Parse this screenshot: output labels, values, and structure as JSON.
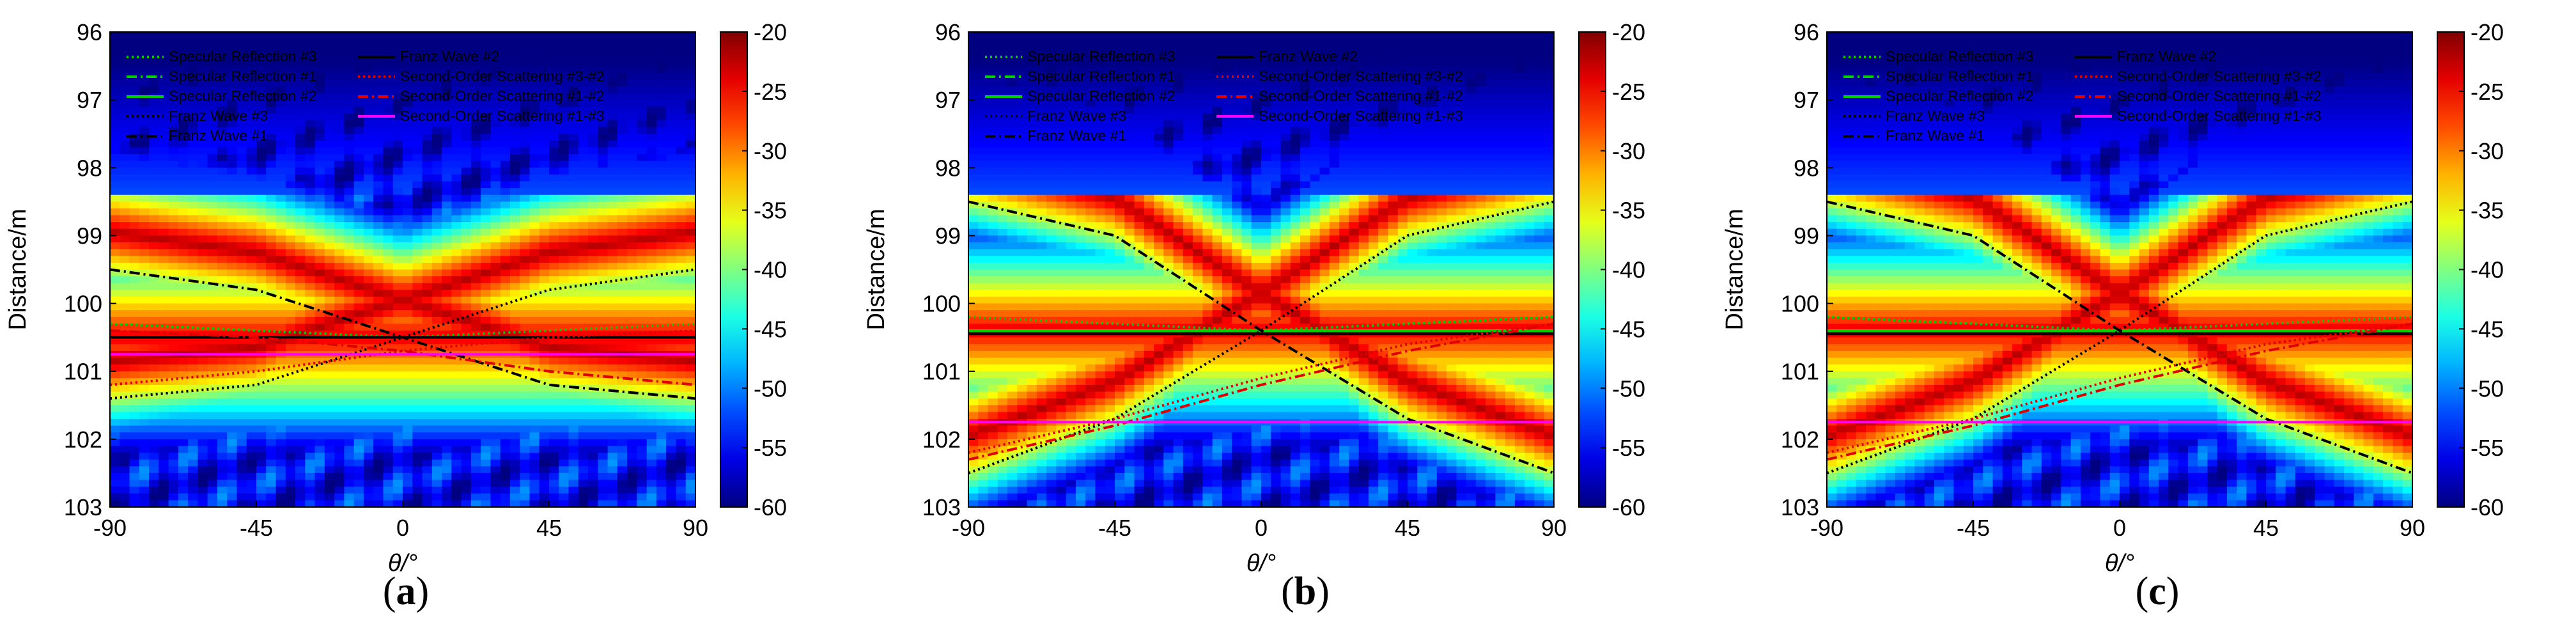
{
  "chart_data": [
    {
      "type": "heatmap",
      "panel_label": "a",
      "xlabel": "θ/°",
      "ylabel": "Distance/m",
      "xlim": [
        -90,
        90
      ],
      "ylim": [
        103,
        96
      ],
      "xticks": [
        "-90",
        "-45",
        "0",
        "45",
        "90"
      ],
      "yticks": [
        "96",
        "97",
        "98",
        "99",
        "100",
        "101",
        "102",
        "103"
      ],
      "colorbar": {
        "range": [
          -60,
          -20
        ],
        "ticks": [
          "-20",
          "-25",
          "-30",
          "-35",
          "-40",
          "-45",
          "-50",
          "-55",
          "-60"
        ],
        "colormap": "jet"
      },
      "legend": [
        "Specular Reflection #3",
        "Specular Reflection #1",
        "Specular Reflection #2",
        "Franz Wave #3",
        "Franz Wave #1",
        "Franz Wave #2",
        "Second-Order Scattering #3-#2",
        "Second-Order Scattering #1-#2",
        "Second-Order Scattering #1-#3"
      ],
      "legend_placement": "top-left",
      "series": [
        {
          "name": "Specular Reflection #3",
          "color": "#00d000",
          "dash": "dot",
          "x": [
            -90,
            0,
            90
          ],
          "y": [
            100.3,
            100.5,
            100.3
          ]
        },
        {
          "name": "Specular Reflection #1",
          "color": "#00d000",
          "dash": "dashdot",
          "x": [
            -90,
            90
          ],
          "y": [
            100.5,
            100.5
          ]
        },
        {
          "name": "Specular Reflection #2",
          "color": "#00d000",
          "dash": "solid",
          "x": [
            -90,
            90
          ],
          "y": [
            100.5,
            100.5
          ]
        },
        {
          "name": "Franz Wave #3",
          "color": "#000000",
          "dash": "dot",
          "x": [
            -90,
            -45,
            0,
            45,
            90
          ],
          "y": [
            101.4,
            101.2,
            100.5,
            99.8,
            99.5
          ]
        },
        {
          "name": "Franz Wave #1",
          "color": "#000000",
          "dash": "dashdot",
          "x": [
            -90,
            -45,
            0,
            45,
            90
          ],
          "y": [
            99.5,
            99.8,
            100.5,
            101.2,
            101.4
          ]
        },
        {
          "name": "Franz Wave #2",
          "color": "#000000",
          "dash": "solid",
          "x": [
            -90,
            90
          ],
          "y": [
            100.5,
            100.5
          ]
        },
        {
          "name": "Second-Order Scattering #3-#2",
          "color": "#e00000",
          "dash": "dot",
          "x": [
            -90,
            -45,
            0,
            45,
            90
          ],
          "y": [
            101.2,
            101.0,
            100.7,
            100.5,
            100.4
          ]
        },
        {
          "name": "Second-Order Scattering #1-#2",
          "color": "#e00000",
          "dash": "dashdot",
          "x": [
            -90,
            -45,
            0,
            45,
            90
          ],
          "y": [
            100.4,
            100.5,
            100.7,
            101.0,
            101.2
          ]
        },
        {
          "name": "Second-Order Scattering #1-#3",
          "color": "#ff00ff",
          "dash": "solid",
          "x": [
            -90,
            90
          ],
          "y": [
            100.75,
            100.75
          ]
        }
      ]
    },
    {
      "type": "heatmap",
      "panel_label": "b",
      "xlabel": "θ/°",
      "ylabel": "Distance/m",
      "xlim": [
        -90,
        90
      ],
      "ylim": [
        103,
        96
      ],
      "xticks": [
        "-90",
        "-45",
        "0",
        "45",
        "90"
      ],
      "yticks": [
        "96",
        "97",
        "98",
        "99",
        "100",
        "101",
        "102",
        "103"
      ],
      "colorbar": {
        "range": [
          -60,
          -20
        ],
        "ticks": [
          "-20",
          "-25",
          "-30",
          "-35",
          "-40",
          "-45",
          "-50",
          "-55",
          "-60"
        ],
        "colormap": "jet"
      },
      "legend": [
        "Specular Reflection #3",
        "Specular Reflection #1",
        "Specular Reflection #2",
        "Franz Wave #3",
        "Franz Wave #1",
        "Franz Wave #2",
        "Second-Order Scattering #3-#2",
        "Second-Order Scattering #1-#2",
        "Second-Order Scattering #1-#3"
      ],
      "legend_placement": "top-left",
      "series": [
        {
          "name": "Specular Reflection #3",
          "color": "#00d000",
          "dash": "dot",
          "x": [
            -90,
            0,
            90
          ],
          "y": [
            100.2,
            100.4,
            100.2
          ]
        },
        {
          "name": "Specular Reflection #1",
          "color": "#00d000",
          "dash": "dashdot",
          "x": [
            -90,
            90
          ],
          "y": [
            100.4,
            100.4
          ]
        },
        {
          "name": "Specular Reflection #2",
          "color": "#00d000",
          "dash": "solid",
          "x": [
            -90,
            90
          ],
          "y": [
            100.4,
            100.4
          ]
        },
        {
          "name": "Franz Wave #3",
          "color": "#000000",
          "dash": "dot",
          "x": [
            -90,
            -45,
            0,
            45,
            90
          ],
          "y": [
            102.5,
            101.7,
            100.4,
            99.0,
            98.5
          ]
        },
        {
          "name": "Franz Wave #1",
          "color": "#000000",
          "dash": "dashdot",
          "x": [
            -90,
            -45,
            0,
            45,
            90
          ],
          "y": [
            98.5,
            99.0,
            100.4,
            101.7,
            102.5
          ]
        },
        {
          "name": "Franz Wave #2",
          "color": "#000000",
          "dash": "solid",
          "x": [
            -90,
            90
          ],
          "y": [
            100.45,
            100.45
          ]
        },
        {
          "name": "Second-Order Scattering #3-#2",
          "color": "#e00000",
          "dash": "dot",
          "x": [
            -90,
            -45,
            0,
            45,
            90
          ],
          "y": [
            102.2,
            101.7,
            101.1,
            100.6,
            100.3
          ]
        },
        {
          "name": "Second-Order Scattering #1-#2",
          "color": "#e00000",
          "dash": "dashdot",
          "x": [
            -90,
            -45,
            0,
            45,
            90
          ],
          "y": [
            102.3,
            101.8,
            101.2,
            100.7,
            100.3
          ]
        },
        {
          "name": "Second-Order Scattering #1-#3",
          "color": "#ff00ff",
          "dash": "solid",
          "x": [
            -90,
            90
          ],
          "y": [
            101.75,
            101.75
          ]
        }
      ]
    },
    {
      "type": "heatmap",
      "panel_label": "c",
      "xlabel": "θ/°",
      "ylabel": "Distance/m",
      "xlim": [
        -90,
        90
      ],
      "ylim": [
        103,
        96
      ],
      "xticks": [
        "-90",
        "-45",
        "0",
        "45",
        "90"
      ],
      "yticks": [
        "96",
        "97",
        "98",
        "99",
        "100",
        "101",
        "102",
        "103"
      ],
      "colorbar": {
        "range": [
          -60,
          -20
        ],
        "ticks": [
          "-20",
          "-25",
          "-30",
          "-35",
          "-40",
          "-45",
          "-50",
          "-55",
          "-60"
        ],
        "colormap": "jet"
      },
      "legend": [
        "Specular Reflection #3",
        "Specular Reflection #1",
        "Specular Reflection #2",
        "Franz Wave #3",
        "Franz Wave #1",
        "Franz Wave #2",
        "Second-Order Scattering #3-#2",
        "Second-Order Scattering #1-#2",
        "Second-Order Scattering #1-#3"
      ],
      "legend_placement": "top-left",
      "series": [
        {
          "name": "Specular Reflection #3",
          "color": "#00d000",
          "dash": "dot",
          "x": [
            -90,
            0,
            90
          ],
          "y": [
            100.2,
            100.4,
            100.2
          ]
        },
        {
          "name": "Specular Reflection #1",
          "color": "#00d000",
          "dash": "dashdot",
          "x": [
            -90,
            90
          ],
          "y": [
            100.4,
            100.4
          ]
        },
        {
          "name": "Specular Reflection #2",
          "color": "#00d000",
          "dash": "solid",
          "x": [
            -90,
            90
          ],
          "y": [
            100.4,
            100.4
          ]
        },
        {
          "name": "Franz Wave #3",
          "color": "#000000",
          "dash": "dot",
          "x": [
            -90,
            -45,
            0,
            45,
            90
          ],
          "y": [
            102.5,
            101.7,
            100.4,
            99.0,
            98.5
          ]
        },
        {
          "name": "Franz Wave #1",
          "color": "#000000",
          "dash": "dashdot",
          "x": [
            -90,
            -45,
            0,
            45,
            90
          ],
          "y": [
            98.5,
            99.0,
            100.4,
            101.7,
            102.5
          ]
        },
        {
          "name": "Franz Wave #2",
          "color": "#000000",
          "dash": "solid",
          "x": [
            -90,
            90
          ],
          "y": [
            100.45,
            100.45
          ]
        },
        {
          "name": "Second-Order Scattering #3-#2",
          "color": "#e00000",
          "dash": "dot",
          "x": [
            -90,
            -45,
            0,
            45,
            90
          ],
          "y": [
            102.2,
            101.7,
            101.1,
            100.6,
            100.3
          ]
        },
        {
          "name": "Second-Order Scattering #1-#2",
          "color": "#e00000",
          "dash": "dashdot",
          "x": [
            -90,
            -45,
            0,
            45,
            90
          ],
          "y": [
            102.3,
            101.8,
            101.2,
            100.7,
            100.3
          ]
        },
        {
          "name": "Second-Order Scattering #1-#3",
          "color": "#ff00ff",
          "dash": "solid",
          "x": [
            -90,
            90
          ],
          "y": [
            101.75,
            101.75
          ]
        }
      ]
    }
  ]
}
